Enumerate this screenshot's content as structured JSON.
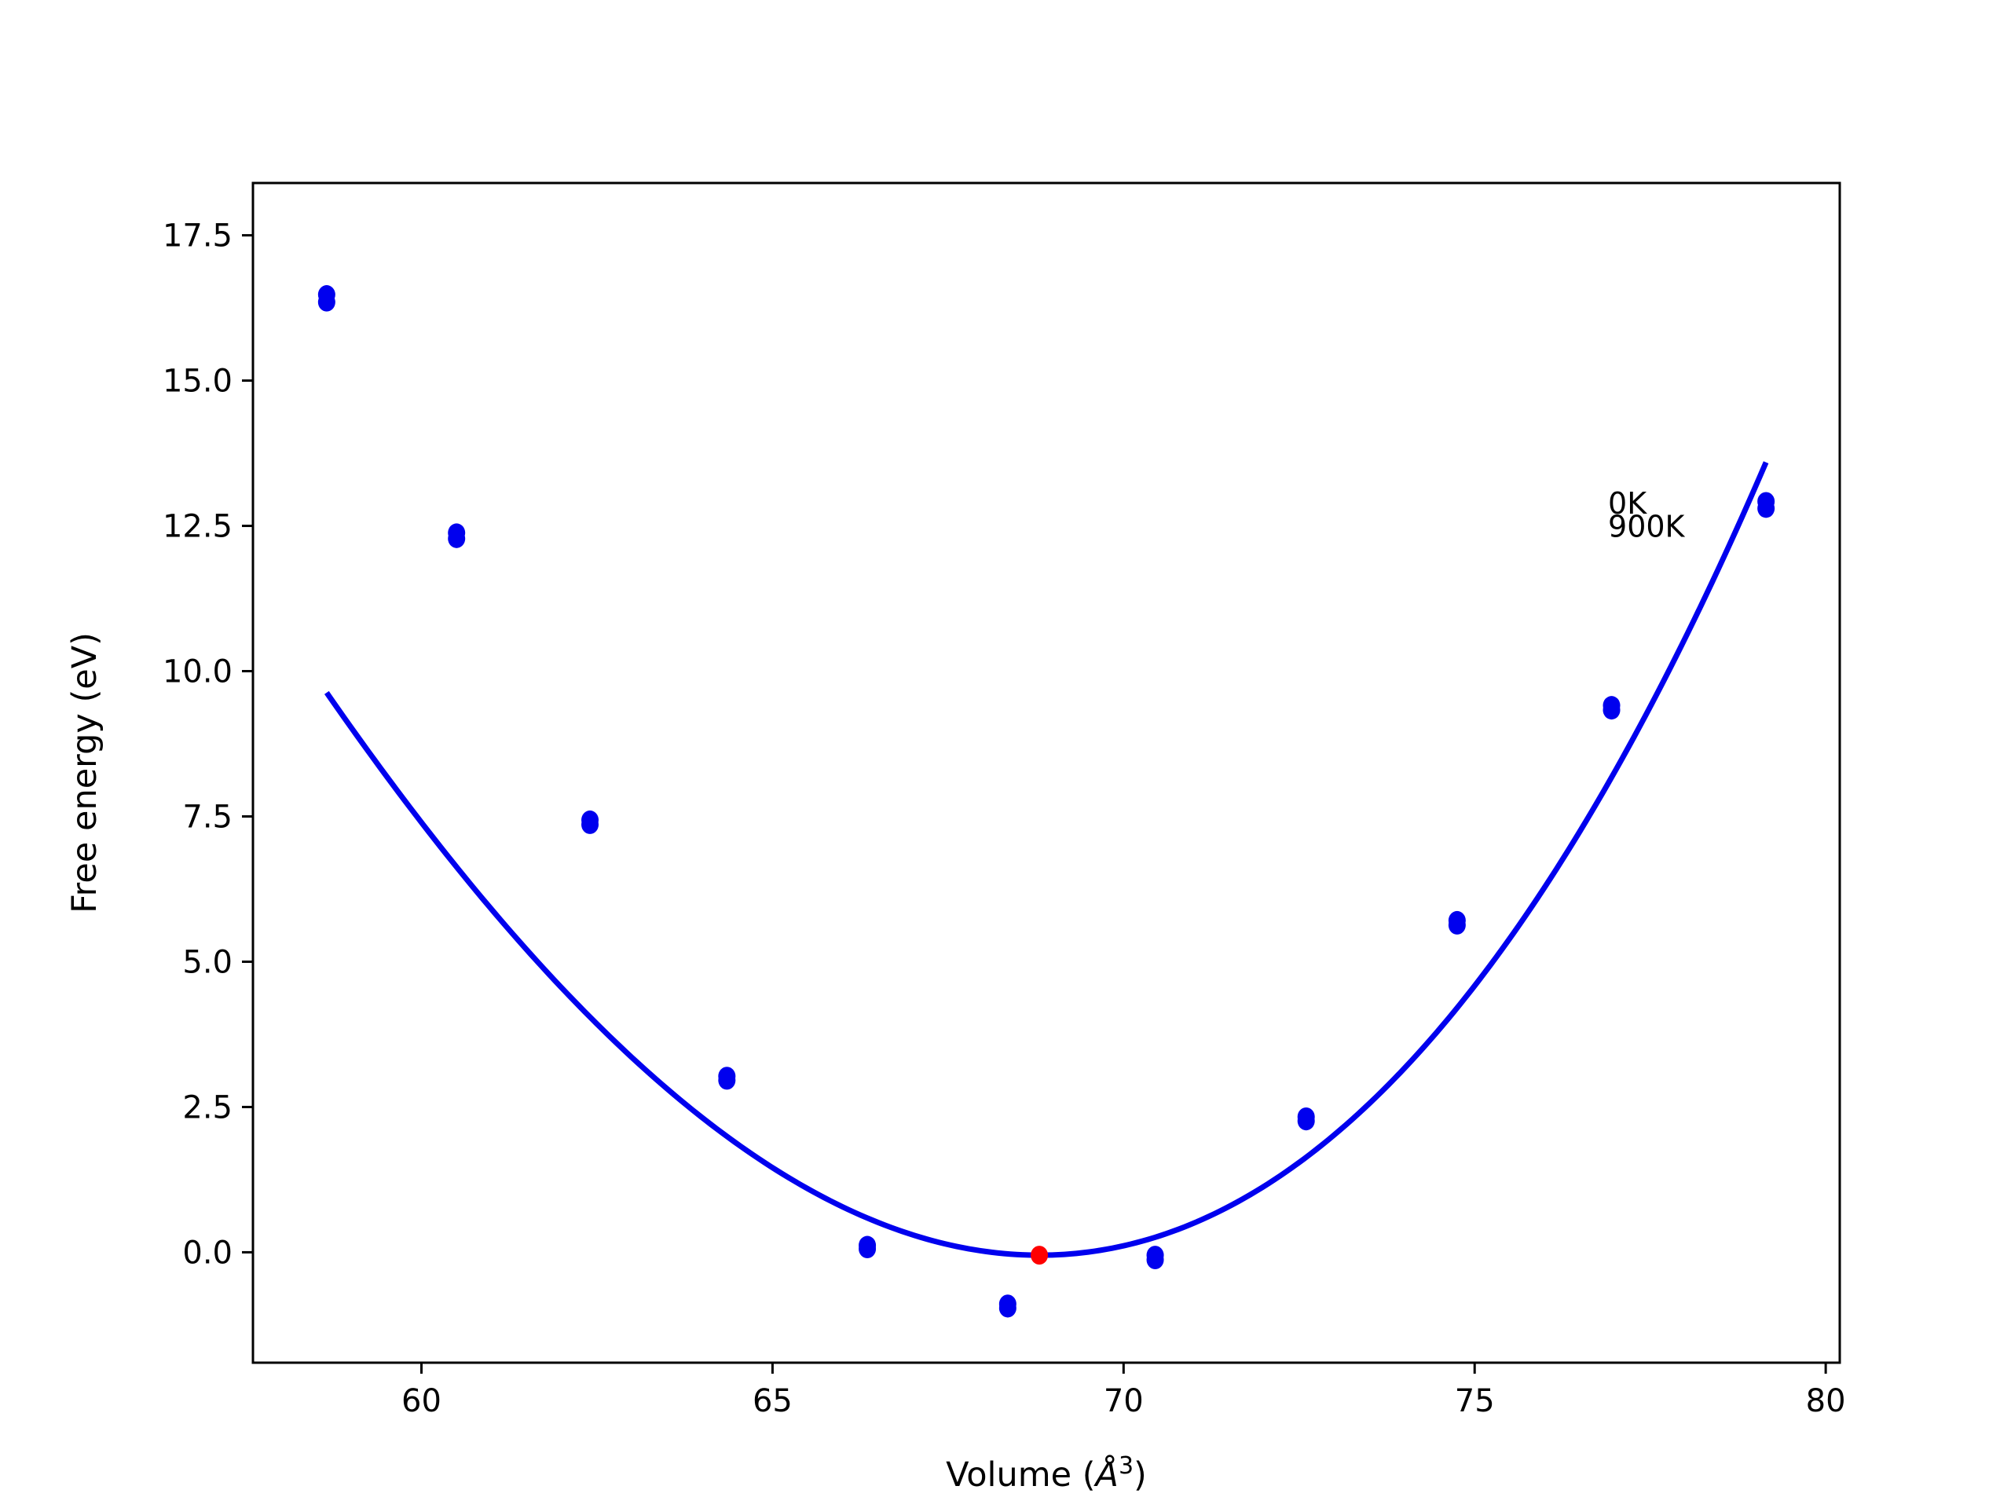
{
  "chart_data": {
    "type": "scatter",
    "title": "",
    "xlabel": "Volume (",
    "xlabel_symbol": "Å",
    "xlabel_exponent": "3",
    "xlabel_close": ")",
    "ylabel": "Free energy (eV)",
    "xlim": [
      57.6,
      80.2
    ],
    "ylim": [
      -1.9,
      18.4
    ],
    "xticks": [
      60,
      65,
      70,
      75,
      80
    ],
    "xtick_labels": [
      "60",
      "65",
      "70",
      "75",
      "80"
    ],
    "yticks": [
      0.0,
      2.5,
      5.0,
      7.5,
      10.0,
      12.5,
      15.0,
      17.5
    ],
    "ytick_labels": [
      "0.0",
      "2.5",
      "5.0",
      "7.5",
      "10.0",
      "12.5",
      "15.0",
      "17.5"
    ],
    "grid": false,
    "annotations": [
      {
        "text": "0K",
        "x": 76.9,
        "y": 12.9
      },
      {
        "text": "900K",
        "x": 76.9,
        "y": 12.5
      }
    ],
    "series": [
      {
        "kind": "points",
        "color": "#0000ee",
        "points": [
          [
            58.65,
            16.48
          ],
          [
            58.65,
            16.35
          ],
          [
            60.5,
            12.38
          ],
          [
            60.5,
            12.28
          ],
          [
            62.4,
            7.44
          ],
          [
            62.4,
            7.36
          ],
          [
            64.35,
            3.03
          ],
          [
            64.35,
            2.96
          ],
          [
            66.35,
            0.12
          ],
          [
            66.35,
            0.06
          ],
          [
            68.35,
            -0.89
          ],
          [
            68.35,
            -0.96
          ],
          [
            70.45,
            -0.05
          ],
          [
            70.45,
            -0.13
          ],
          [
            72.6,
            2.33
          ],
          [
            72.6,
            2.26
          ],
          [
            74.75,
            5.71
          ],
          [
            74.75,
            5.63
          ],
          [
            76.95,
            9.41
          ],
          [
            76.95,
            9.33
          ],
          [
            79.15,
            12.92
          ],
          [
            79.15,
            12.8
          ]
        ]
      },
      {
        "kind": "fit-curve",
        "color": "#0000ee",
        "curve": {
          "v0": 68.8,
          "e0": -0.05,
          "a": 0.1105,
          "b": 0.00163,
          "x_from": 58.65,
          "x_to": 79.15
        }
      },
      {
        "kind": "minimum-point",
        "color": "#ff0000",
        "points": [
          [
            68.8,
            -0.05
          ]
        ]
      }
    ]
  }
}
